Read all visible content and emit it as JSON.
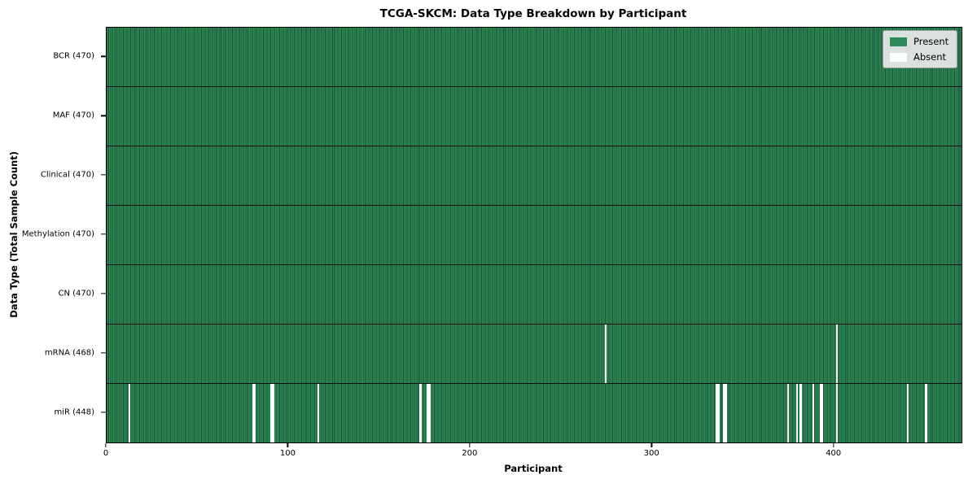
{
  "window_title": "TCGA-SKCM: Data Type Breakdown by Participant",
  "chart_data": {
    "type": "heatmap",
    "title": "TCGA-SKCM: Data Type Breakdown by Participant",
    "xlabel": "Participant",
    "ylabel": "Data Type (Total Sample Count)",
    "x_range": [
      0,
      470
    ],
    "x_ticks": [
      0,
      100,
      200,
      300,
      400
    ],
    "grid": false,
    "legend": {
      "position": "upper-right",
      "entries": [
        {
          "label": "Present",
          "color": "#2e8b57"
        },
        {
          "label": "Absent",
          "color": "#ffffff"
        }
      ]
    },
    "colors": {
      "present": "#2e8b57",
      "present_edge": "#174f30",
      "absent": "#ffffff",
      "row_divider": "#000000",
      "legend_bg": "#eaeaea"
    },
    "total_participants": 470,
    "rows": [
      {
        "data_type": "BCR",
        "label": "BCR (470)",
        "present_count": 470,
        "absent_participants": []
      },
      {
        "data_type": "MAF",
        "label": "MAF (470)",
        "present_count": 470,
        "absent_participants": []
      },
      {
        "data_type": "Clinical",
        "label": "Clinical (470)",
        "present_count": 470,
        "absent_participants": []
      },
      {
        "data_type": "Methylation",
        "label": "Methylation (470)",
        "present_count": 470,
        "absent_participants": []
      },
      {
        "data_type": "CN",
        "label": "CN (470)",
        "present_count": 470,
        "absent_participants": []
      },
      {
        "data_type": "mRNA",
        "label": "mRNA (468)",
        "present_count": 468,
        "absent_participants": [
          274,
          401
        ]
      },
      {
        "data_type": "miR",
        "label": "miR (448)",
        "present_count": 448,
        "absent_participants": [
          12,
          80,
          81,
          90,
          91,
          116,
          172,
          176,
          177,
          335,
          336,
          339,
          340,
          374,
          379,
          381,
          388,
          392,
          393,
          401,
          440,
          450
        ]
      }
    ]
  }
}
